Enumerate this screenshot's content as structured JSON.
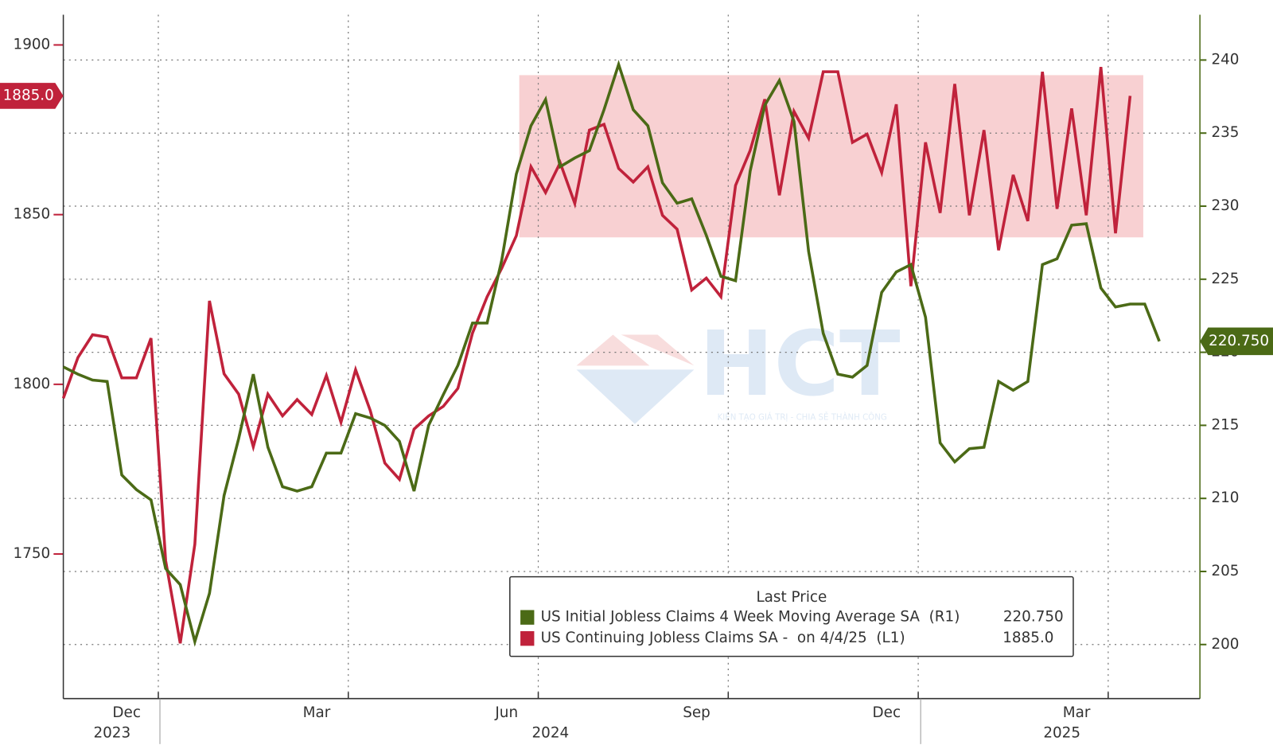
{
  "chart_data": {
    "type": "line",
    "categories": [
      null,
      null,
      null,
      null,
      "Dec",
      null,
      null,
      null,
      null,
      null,
      null,
      null,
      null,
      null,
      null,
      null,
      null,
      "Mar",
      null,
      null,
      null,
      null,
      null,
      null,
      null,
      null,
      null,
      null,
      null,
      null,
      "Jun",
      null,
      null,
      null,
      null,
      null,
      null,
      null,
      null,
      null,
      null,
      null,
      null,
      "Sep",
      null,
      null,
      null,
      null,
      null,
      null,
      null,
      null,
      null,
      null,
      null,
      null,
      "Dec",
      null,
      null,
      null,
      null,
      null,
      null,
      null,
      null,
      null,
      null,
      null,
      null,
      "Mar",
      null,
      null,
      null,
      null,
      null,
      null
    ],
    "category_years": [
      null,
      null,
      null,
      "2023",
      null,
      null,
      null,
      null,
      null,
      null,
      null,
      null,
      null,
      null,
      null,
      null,
      null,
      null,
      null,
      null,
      null,
      null,
      null,
      null,
      null,
      null,
      null,
      null,
      null,
      null,
      null,
      null,
      null,
      "2024",
      null,
      null,
      null,
      null,
      null,
      null,
      null,
      null,
      null,
      null,
      null,
      null,
      null,
      null,
      null,
      null,
      null,
      null,
      null,
      null,
      null,
      null,
      null,
      null,
      null,
      null,
      null,
      null,
      null,
      null,
      null,
      null,
      null,
      null,
      "2025",
      null,
      null,
      null,
      null,
      null,
      null,
      null
    ],
    "series": [
      {
        "name": "US Initial Jobless Claims 4 Week Moving Average SA  (R1)",
        "color": "#4b6a16",
        "axis": "y2",
        "last_value_label": "220.750",
        "values": [
          219.0,
          218.5,
          218.1,
          218.0,
          211.6,
          210.6,
          209.9,
          205.2,
          204.1,
          200.2,
          203.5,
          210.2,
          214.1,
          218.5,
          213.5,
          210.8,
          210.5,
          210.8,
          213.1,
          213.1,
          215.8,
          215.5,
          215.0,
          213.9,
          210.5,
          215.0,
          217.1,
          219.1,
          222.0,
          222.0,
          226.3,
          232.2,
          235.5,
          237.3,
          232.7,
          233.3,
          233.8,
          236.6,
          239.7,
          236.6,
          235.5,
          231.6,
          230.2,
          230.5,
          228.0,
          225.2,
          224.9,
          232.4,
          236.9,
          238.6,
          235.8,
          226.9,
          221.3,
          218.5,
          218.3,
          219.1,
          224.1,
          225.5,
          226.0,
          222.4,
          213.8,
          212.5,
          213.4,
          213.5,
          218.0,
          217.4,
          218.0,
          226.0,
          226.4,
          228.7,
          228.8,
          224.4,
          223.1,
          223.3,
          223.3,
          220.75
        ]
      },
      {
        "name": "US Continuing Jobless Claims SA -  on 4/4/25  (L1)",
        "color": "#c0223b",
        "axis": "y",
        "last_value_label": "1885.0",
        "values": [
          1795.9,
          1807.9,
          1814.6,
          1813.9,
          1801.9,
          1801.9,
          1813.6,
          1748.1,
          1723.7,
          1752.9,
          1824.6,
          1803.1,
          1797.1,
          1781.6,
          1797.1,
          1790.7,
          1795.5,
          1791.1,
          1802.6,
          1788.8,
          1804.3,
          1792.3,
          1776.8,
          1772.0,
          1786.8,
          1790.7,
          1793.5,
          1798.8,
          1815.1,
          1825.8,
          1834.2,
          1843.8,
          1864.1,
          1856.5,
          1865.3,
          1853.3,
          1874.9,
          1876.6,
          1863.6,
          1859.6,
          1864.1,
          1849.8,
          1845.7,
          1827.8,
          1831.3,
          1825.8,
          1858.6,
          1868.9,
          1884.0,
          1855.7,
          1880.4,
          1872.5,
          1892.1,
          1892.1,
          1871.3,
          1873.7,
          1862.4,
          1882.5,
          1828.9,
          1871.3,
          1850.5,
          1888.5,
          1849.8,
          1874.9,
          1839.5,
          1861.7,
          1848.1,
          1892.1,
          1851.7,
          1881.3,
          1849.8,
          1893.5,
          1844.5,
          1885.0,
          null,
          null
        ]
      }
    ],
    "ylim": [
      1707.4,
      1908.9
    ],
    "yticks": [
      1750,
      1800,
      1850,
      1900
    ],
    "y2lim": [
      196.3,
      243.1
    ],
    "y2ticks": [
      200,
      205,
      210,
      215,
      220,
      225,
      230,
      235,
      240
    ],
    "highlight": [
      1843.3,
      1891.1
    ],
    "highlight_color": "#f8d0d2",
    "grid": true,
    "legend": "lower center",
    "legend_title": "Last Price",
    "watermark": {
      "logo": "HCT",
      "tagline": "KIẾN TẠO GIÁ TRỊ - CHIA SẺ THÀNH CÔNG"
    }
  }
}
